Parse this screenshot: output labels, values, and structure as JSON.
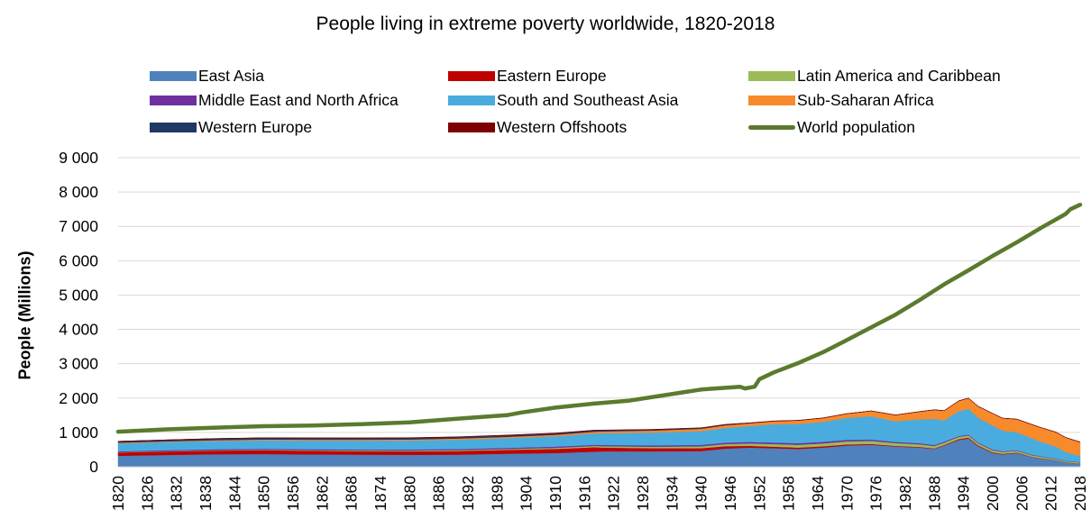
{
  "chart_data": {
    "type": "area",
    "title": "People living in extreme poverty worldwide, 1820-2018",
    "xlabel": "",
    "ylabel": "People (Millions)",
    "ylim": [
      0,
      9000
    ],
    "yticks": [
      0,
      1000,
      2000,
      3000,
      4000,
      5000,
      6000,
      7000,
      8000,
      9000
    ],
    "ytick_labels": [
      "0",
      "1 000",
      "2 000",
      "3 000",
      "4 000",
      "5 000",
      "6 000",
      "7 000",
      "8 000",
      "9 000"
    ],
    "xlim": [
      1820,
      2018
    ],
    "xticks": [
      1820,
      1826,
      1832,
      1838,
      1844,
      1850,
      1856,
      1862,
      1868,
      1874,
      1880,
      1886,
      1892,
      1898,
      1904,
      1910,
      1916,
      1922,
      1928,
      1934,
      1940,
      1946,
      1952,
      1958,
      1964,
      1970,
      1976,
      1982,
      1988,
      1994,
      2000,
      2006,
      2012,
      2018
    ],
    "xtick_labels": [
      "1820",
      "1826",
      "1832",
      "1838",
      "1844",
      "1850",
      "1856",
      "1862",
      "1868",
      "1874",
      "1880",
      "1886",
      "1892",
      "1898",
      "1904",
      "1910",
      "1916",
      "1922",
      "1928",
      "1934",
      "1940",
      "1946",
      "1952",
      "1958",
      "1964",
      "1970",
      "1976",
      "1982",
      "1988",
      "1994",
      "2000",
      "2006",
      "2012",
      "2018"
    ],
    "grid": "horizontal",
    "legend_position": "top",
    "x": [
      1820,
      1830,
      1840,
      1850,
      1860,
      1870,
      1880,
      1890,
      1900,
      1910,
      1918,
      1920,
      1930,
      1940,
      1945,
      1950,
      1955,
      1960,
      1965,
      1970,
      1975,
      1980,
      1985,
      1988,
      1990,
      1993,
      1995,
      1997,
      2000,
      2002,
      2005,
      2008,
      2010,
      2013,
      2015,
      2018
    ],
    "stacked_series": [
      {
        "name": "East Asia",
        "color": "#4F81BD",
        "values": [
          320,
          345,
          365,
          370,
          360,
          355,
          350,
          355,
          380,
          400,
          440,
          450,
          450,
          460,
          530,
          560,
          540,
          520,
          560,
          620,
          640,
          590,
          560,
          520,
          620,
          780,
          820,
          600,
          400,
          360,
          400,
          280,
          240,
          180,
          120,
          90
        ]
      },
      {
        "name": "Eastern Europe",
        "color": "#C00000",
        "values": [
          95,
          100,
          105,
          110,
          105,
          100,
          100,
          105,
          110,
          120,
          130,
          110,
          90,
          80,
          70,
          50,
          45,
          40,
          35,
          30,
          25,
          20,
          18,
          16,
          15,
          25,
          30,
          25,
          20,
          18,
          15,
          12,
          10,
          8,
          6,
          5
        ]
      },
      {
        "name": "Latin America and Caribbean",
        "color": "#9BBB59",
        "values": [
          10,
          12,
          14,
          16,
          18,
          20,
          22,
          25,
          28,
          32,
          35,
          38,
          45,
          55,
          60,
          70,
          75,
          80,
          85,
          90,
          88,
          80,
          75,
          70,
          68,
          65,
          62,
          60,
          58,
          55,
          50,
          45,
          40,
          35,
          32,
          30
        ]
      },
      {
        "name": "Middle East and North Africa",
        "color": "#7030A0",
        "values": [
          25,
          26,
          27,
          28,
          29,
          30,
          31,
          32,
          33,
          35,
          36,
          37,
          40,
          42,
          44,
          45,
          46,
          47,
          46,
          44,
          40,
          35,
          32,
          30,
          28,
          26,
          25,
          24,
          22,
          20,
          18,
          16,
          15,
          14,
          13,
          12
        ]
      },
      {
        "name": "South and Southeast Asia",
        "color": "#4AACDE",
        "values": [
          230,
          235,
          240,
          245,
          250,
          255,
          260,
          270,
          280,
          300,
          330,
          345,
          370,
          400,
          430,
          460,
          530,
          560,
          580,
          640,
          680,
          600,
          700,
          760,
          620,
          720,
          750,
          720,
          700,
          600,
          520,
          480,
          420,
          350,
          260,
          180
        ]
      },
      {
        "name": "Sub-Saharan Africa",
        "color": "#F78A2A",
        "values": [
          20,
          22,
          24,
          26,
          28,
          30,
          33,
          36,
          40,
          45,
          50,
          52,
          60,
          70,
          75,
          80,
          90,
          100,
          110,
          120,
          150,
          180,
          220,
          260,
          280,
          300,
          310,
          330,
          350,
          360,
          380,
          400,
          410,
          420,
          420,
          400
        ]
      },
      {
        "name": "Western Europe",
        "color": "#1F3864",
        "values": [
          40,
          42,
          44,
          46,
          46,
          45,
          44,
          43,
          42,
          40,
          38,
          30,
          25,
          22,
          20,
          10,
          5,
          3,
          2,
          1,
          1,
          1,
          1,
          1,
          1,
          1,
          1,
          1,
          1,
          1,
          1,
          1,
          1,
          1,
          1,
          1
        ]
      },
      {
        "name": "Western Offshoots",
        "color": "#7F0000",
        "values": [
          2,
          3,
          4,
          5,
          6,
          7,
          8,
          9,
          10,
          10,
          10,
          9,
          8,
          7,
          6,
          5,
          4,
          3,
          3,
          3,
          3,
          3,
          3,
          3,
          3,
          3,
          3,
          3,
          3,
          3,
          3,
          3,
          3,
          3,
          3,
          3
        ]
      }
    ],
    "line_series": {
      "name": "World population",
      "color": "#5B7A2E",
      "x": [
        1820,
        1830,
        1840,
        1850,
        1860,
        1870,
        1880,
        1890,
        1900,
        1903,
        1910,
        1918,
        1925,
        1930,
        1940,
        1948,
        1949,
        1951,
        1952,
        1955,
        1960,
        1965,
        1970,
        1975,
        1980,
        1985,
        1990,
        1995,
        2000,
        2005,
        2010,
        2015,
        2016,
        2018
      ],
      "values": [
        1020,
        1090,
        1140,
        1180,
        1200,
        1240,
        1290,
        1400,
        1500,
        1580,
        1720,
        1840,
        1920,
        2030,
        2250,
        2330,
        2280,
        2330,
        2550,
        2750,
        3020,
        3330,
        3690,
        4060,
        4430,
        4860,
        5310,
        5720,
        6140,
        6540,
        6960,
        7360,
        7500,
        7630
      ]
    }
  }
}
